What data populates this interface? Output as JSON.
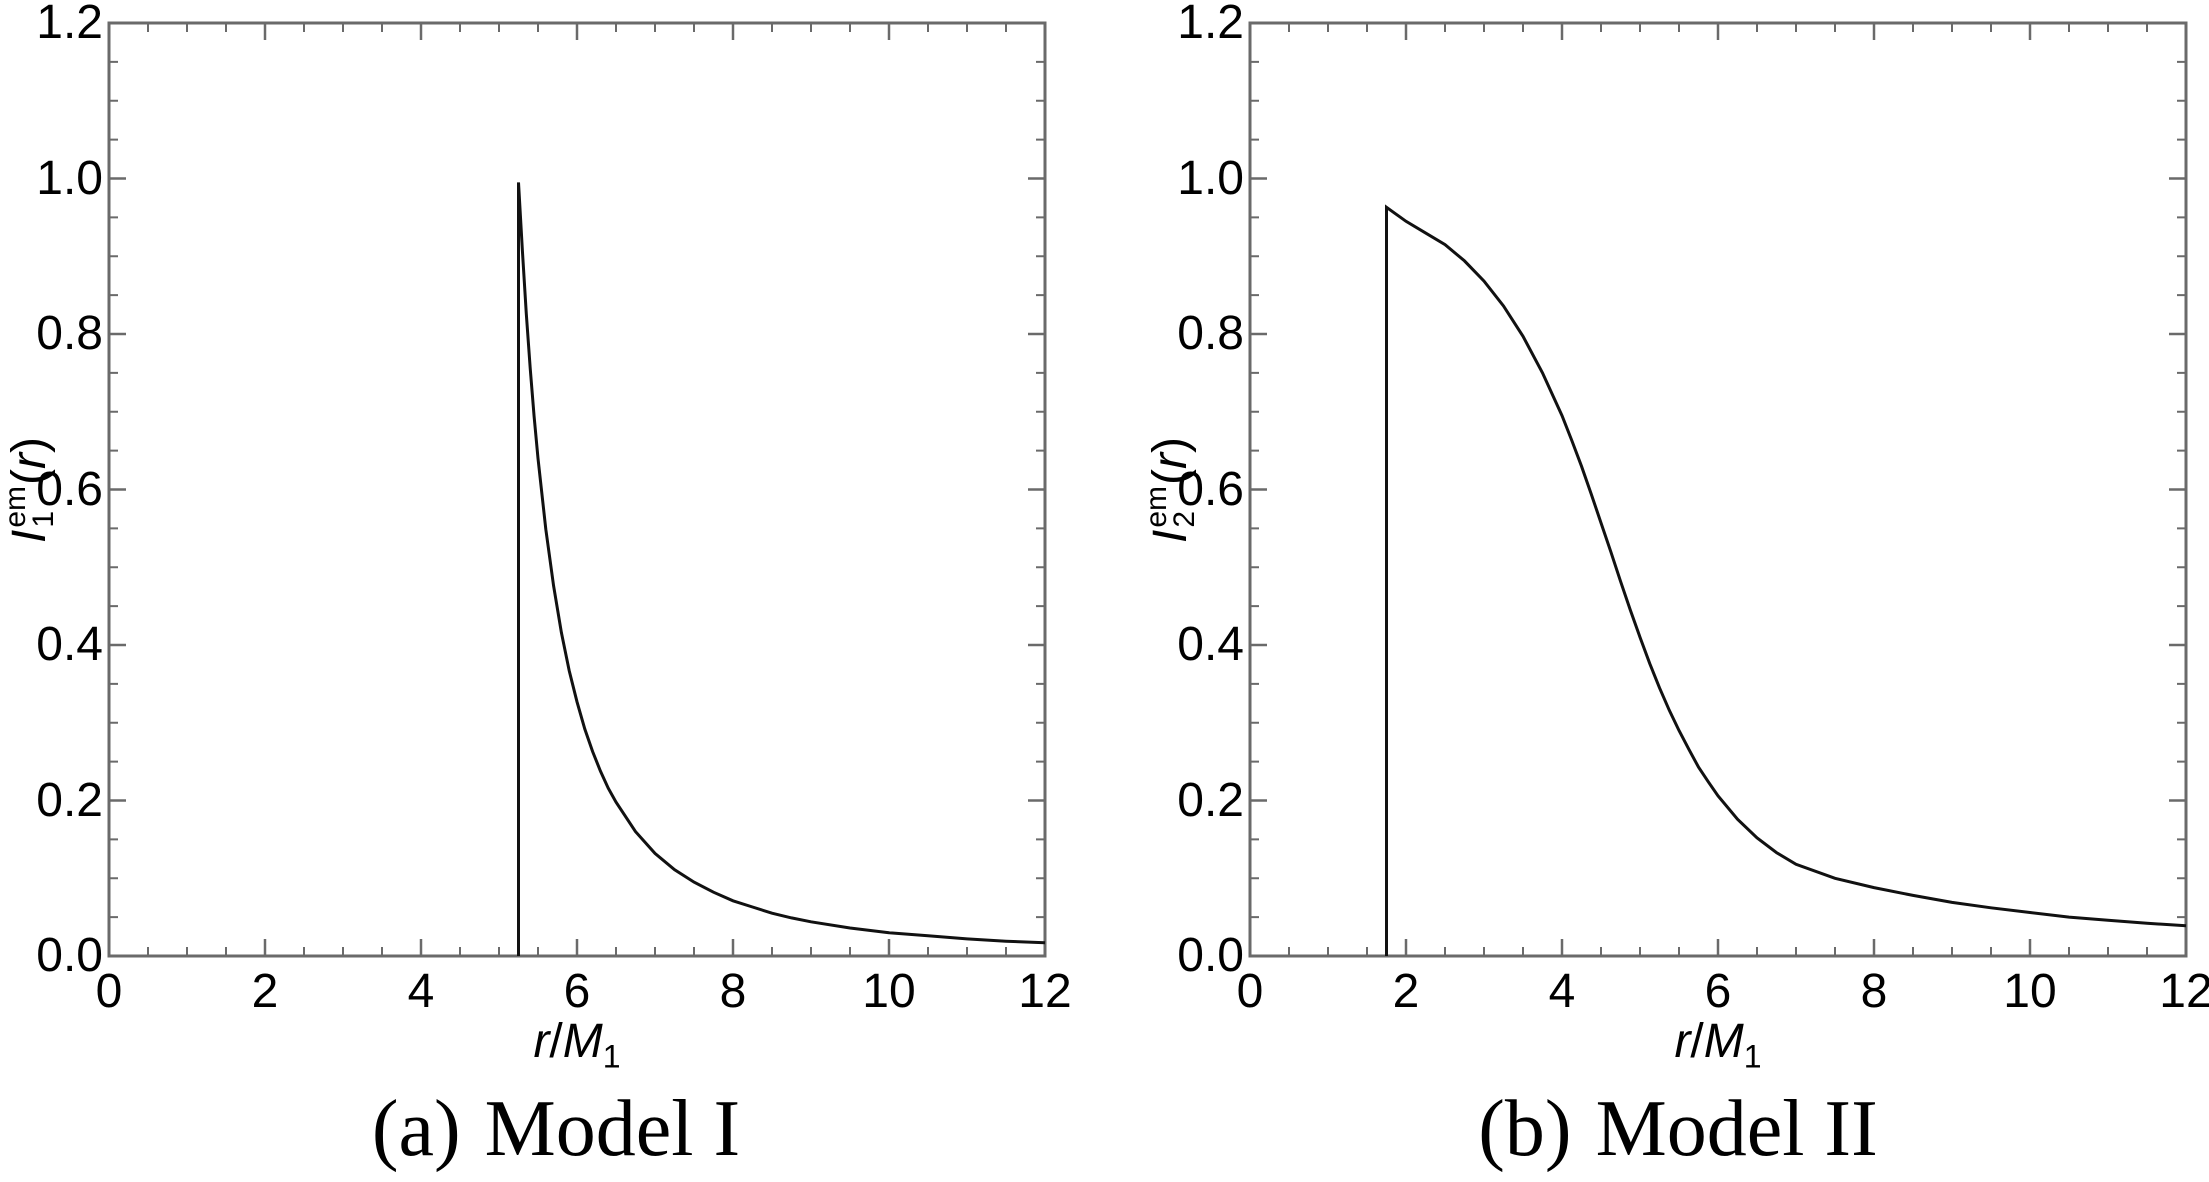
{
  "figure": {
    "background": "#ffffff",
    "frame_color": "#6a6a6a",
    "curve_color": "#111111",
    "label_color": "#000000"
  },
  "panels": [
    {
      "caption_tag": "(a)",
      "caption_text": "Model I",
      "x_label": {
        "var": "r",
        "slash": "/",
        "mass": "M",
        "sub": "1"
      },
      "y_label": {
        "var": "I",
        "sub": "1",
        "sup": "em",
        "open": "(",
        "arg": "r",
        "close": ")"
      },
      "x_tick_labels": [
        "0",
        "2",
        "4",
        "6",
        "8",
        "10",
        "12"
      ],
      "y_tick_labels": [
        "0.0",
        "0.2",
        "0.4",
        "0.6",
        "0.8",
        "1.0",
        "1.2"
      ]
    },
    {
      "caption_tag": "(b)",
      "caption_text": "Model II",
      "x_label": {
        "var": "r",
        "slash": "/",
        "mass": "M",
        "sub": "1"
      },
      "y_label": {
        "var": "I",
        "sub": "2",
        "sup": "em",
        "open": "(",
        "arg": "r",
        "close": ")"
      },
      "x_tick_labels": [
        "0",
        "2",
        "4",
        "6",
        "8",
        "10",
        "12"
      ],
      "y_tick_labels": [
        "0.0",
        "0.2",
        "0.4",
        "0.6",
        "0.8",
        "1.0",
        "1.2"
      ]
    }
  ],
  "chart_data": [
    {
      "type": "line",
      "title": "(a) Model I",
      "xlabel": "r/M1",
      "ylabel": "I1^em(r)",
      "xlim": [
        0,
        12
      ],
      "ylim": [
        0,
        1.2
      ],
      "x_ticks": [
        0,
        2,
        4,
        6,
        8,
        10,
        12
      ],
      "x_minor_step": 0.5,
      "y_ticks": [
        0,
        0.2,
        0.4,
        0.6,
        0.8,
        1.0,
        1.2
      ],
      "y_minor_step": 0.05,
      "grid": false,
      "legend": false,
      "description": "Emission intensity spikes at r/M1 = 5.25 (value 1.0) then decays as 1/(r-4.25)^2; zero below 5.25",
      "series": [
        {
          "name": "I1_em(r)",
          "points": [
            [
              5.25,
              0.0
            ],
            [
              5.25,
              0.995
            ],
            [
              5.3,
              0.907
            ],
            [
              5.35,
              0.826
            ],
            [
              5.4,
              0.756
            ],
            [
              5.45,
              0.694
            ],
            [
              5.5,
              0.64
            ],
            [
              5.6,
              0.549
            ],
            [
              5.7,
              0.476
            ],
            [
              5.8,
              0.416
            ],
            [
              5.9,
              0.367
            ],
            [
              6.0,
              0.327
            ],
            [
              6.1,
              0.292
            ],
            [
              6.2,
              0.263
            ],
            [
              6.3,
              0.238
            ],
            [
              6.4,
              0.216
            ],
            [
              6.5,
              0.198
            ],
            [
              6.75,
              0.16
            ],
            [
              7.0,
              0.132
            ],
            [
              7.25,
              0.111
            ],
            [
              7.5,
              0.095
            ],
            [
              7.75,
              0.082
            ],
            [
              8.0,
              0.071
            ],
            [
              8.25,
              0.063
            ],
            [
              8.5,
              0.055
            ],
            [
              8.75,
              0.049
            ],
            [
              9.0,
              0.044
            ],
            [
              9.5,
              0.036
            ],
            [
              10.0,
              0.03
            ],
            [
              10.5,
              0.026
            ],
            [
              11.0,
              0.022
            ],
            [
              11.5,
              0.019
            ],
            [
              12.0,
              0.017
            ]
          ]
        }
      ]
    },
    {
      "type": "line",
      "title": "(b) Model II",
      "xlabel": "r/M1",
      "ylabel": "I2^em(r)",
      "xlim": [
        0,
        12
      ],
      "ylim": [
        0,
        1.2
      ],
      "x_ticks": [
        0,
        2,
        4,
        6,
        8,
        10,
        12
      ],
      "x_minor_step": 0.5,
      "y_ticks": [
        0,
        0.2,
        0.4,
        0.6,
        0.8,
        1.0,
        1.2
      ],
      "y_minor_step": 0.05,
      "grid": false,
      "legend": false,
      "description": "Emission rises vertically at r/M1 = 1.75 to 0.96 then falls off smoothly (arctan-like sigmoid); zero below 1.75",
      "series": [
        {
          "name": "I2_em(r)",
          "points": [
            [
              1.75,
              0.0
            ],
            [
              1.75,
              0.963
            ],
            [
              2.0,
              0.945
            ],
            [
              2.25,
              0.93
            ],
            [
              2.5,
              0.915
            ],
            [
              2.75,
              0.894
            ],
            [
              3.0,
              0.868
            ],
            [
              3.25,
              0.836
            ],
            [
              3.5,
              0.797
            ],
            [
              3.75,
              0.75
            ],
            [
              4.0,
              0.695
            ],
            [
              4.125,
              0.663
            ],
            [
              4.25,
              0.63
            ],
            [
              4.375,
              0.594
            ],
            [
              4.5,
              0.557
            ],
            [
              4.625,
              0.52
            ],
            [
              4.75,
              0.482
            ],
            [
              4.875,
              0.445
            ],
            [
              5.0,
              0.41
            ],
            [
              5.125,
              0.376
            ],
            [
              5.25,
              0.345
            ],
            [
              5.375,
              0.316
            ],
            [
              5.5,
              0.29
            ],
            [
              5.625,
              0.266
            ],
            [
              5.75,
              0.243
            ],
            [
              5.875,
              0.224
            ],
            [
              6.0,
              0.206
            ],
            [
              6.25,
              0.176
            ],
            [
              6.5,
              0.152
            ],
            [
              6.75,
              0.133
            ],
            [
              7.0,
              0.118
            ],
            [
              7.5,
              0.1
            ],
            [
              8.0,
              0.088
            ],
            [
              8.5,
              0.078
            ],
            [
              9.0,
              0.069
            ],
            [
              9.5,
              0.062
            ],
            [
              10.0,
              0.056
            ],
            [
              10.5,
              0.05
            ],
            [
              11.0,
              0.046
            ],
            [
              11.5,
              0.042
            ],
            [
              12.0,
              0.039
            ]
          ]
        }
      ]
    }
  ]
}
